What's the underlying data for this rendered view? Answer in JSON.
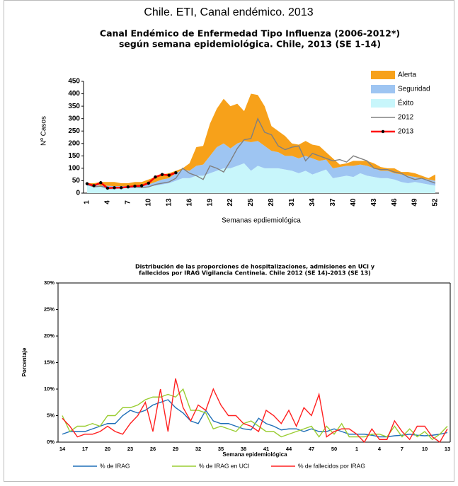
{
  "page_title": "Chile. ETI, Canal endémico. 2013",
  "chart_data": [
    {
      "type": "area",
      "stacked": true,
      "title": [
        "Canal  Endémico de Enfermedad Tipo Influenza (2006-2012*)",
        "según semana epidemiológica. Chile,  2013  (SE 1-14)"
      ],
      "xlabel": "Semanas epdiemiológica",
      "ylabel": "Nº Casos",
      "categories": [
        1,
        null,
        null,
        4,
        null,
        null,
        7,
        null,
        null,
        10,
        null,
        null,
        13,
        null,
        null,
        16,
        null,
        null,
        19,
        null,
        null,
        22,
        null,
        null,
        25,
        null,
        null,
        28,
        null,
        null,
        31,
        null,
        null,
        34,
        null,
        null,
        37,
        null,
        null,
        40,
        null,
        null,
        43,
        null,
        null,
        46,
        null,
        null,
        49,
        null,
        null,
        52
      ],
      "ylim": [
        0,
        450
      ],
      "yticks": [
        0,
        50,
        100,
        150,
        200,
        250,
        300,
        350,
        400,
        450
      ],
      "grid": false,
      "legend": "right",
      "series": [
        {
          "name": "Alerta",
          "type": "area",
          "color": "#f7a11a",
          "values": [
            5,
            7,
            15,
            15,
            17,
            12,
            12,
            15,
            13,
            20,
            20,
            20,
            20,
            10,
            5,
            30,
            75,
            75,
            130,
            155,
            180,
            170,
            160,
            120,
            195,
            185,
            160,
            100,
            85,
            80,
            50,
            55,
            60,
            55,
            60,
            30,
            40,
            10,
            10,
            20,
            15,
            20,
            20,
            15,
            10,
            20,
            10,
            15,
            15,
            10,
            5,
            25
          ]
        },
        {
          "name": "Seguridad",
          "type": "area",
          "color": "#9ec5f2",
          "values": [
            5,
            8,
            5,
            15,
            13,
            8,
            8,
            10,
            7,
            10,
            15,
            20,
            20,
            30,
            35,
            30,
            40,
            45,
            70,
            95,
            100,
            80,
            90,
            90,
            115,
            100,
            90,
            70,
            65,
            55,
            60,
            60,
            60,
            65,
            45,
            40,
            40,
            40,
            40,
            45,
            35,
            40,
            35,
            30,
            30,
            25,
            30,
            30,
            20,
            20,
            20,
            20
          ]
        },
        {
          "name": "Éxito",
          "type": "area",
          "color": "#c8f6fb",
          "values": [
            30,
            25,
            25,
            15,
            15,
            20,
            20,
            20,
            25,
            25,
            30,
            35,
            40,
            50,
            60,
            60,
            70,
            70,
            80,
            90,
            100,
            100,
            110,
            120,
            90,
            110,
            100,
            100,
            100,
            95,
            90,
            80,
            90,
            75,
            85,
            95,
            60,
            65,
            70,
            65,
            80,
            70,
            65,
            60,
            60,
            55,
            45,
            40,
            45,
            40,
            35,
            30
          ]
        },
        {
          "name": "2012",
          "type": "line",
          "color": "#808080",
          "values": [
            35,
            25,
            28,
            22,
            20,
            22,
            25,
            25,
            22,
            25,
            35,
            40,
            45,
            60,
            100,
            80,
            70,
            55,
            110,
            100,
            85,
            130,
            180,
            215,
            220,
            300,
            245,
            235,
            190,
            175,
            185,
            190,
            130,
            160,
            150,
            140,
            130,
            135,
            125,
            150,
            140,
            130,
            100,
            95,
            95,
            85,
            80,
            65,
            55,
            60,
            50,
            40
          ]
        },
        {
          "name": "2013",
          "type": "line",
          "color": "#ff0000",
          "markers": true,
          "values": [
            38,
            30,
            42,
            20,
            22,
            22,
            25,
            28,
            30,
            40,
            65,
            75,
            72,
            82,
            null,
            null,
            null,
            null,
            null,
            null,
            null,
            null,
            null,
            null,
            null,
            null,
            null,
            null,
            null,
            null,
            null,
            null,
            null,
            null,
            null,
            null,
            null,
            null,
            null,
            null,
            null,
            null,
            null,
            null,
            null,
            null,
            null,
            null,
            null,
            null,
            null,
            null
          ]
        }
      ]
    },
    {
      "type": "line",
      "title": [
        "Distribución de las proporciones de hospitalizaciones, admisiones en UCI y",
        "fallecidos por IRAG  Vigilancia  Centinela. Chile 2012 (SE 14)-2013 (SE 13)"
      ],
      "xlabel": "Semana epidemiológica",
      "ylabel": "Porcentaje",
      "categories": [
        14,
        null,
        null,
        17,
        null,
        null,
        20,
        null,
        null,
        23,
        null,
        null,
        26,
        null,
        null,
        29,
        null,
        null,
        32,
        null,
        null,
        35,
        null,
        null,
        38,
        null,
        null,
        41,
        null,
        null,
        44,
        null,
        null,
        47,
        null,
        null,
        50,
        null,
        null,
        1,
        null,
        null,
        4,
        null,
        null,
        7,
        null,
        null,
        10,
        null,
        null,
        13
      ],
      "ylim": [
        0,
        30
      ],
      "yticks": [
        {
          "value": 0,
          "label": "0%"
        },
        {
          "value": 5,
          "label": "5%"
        },
        {
          "value": 10,
          "label": "10%"
        },
        {
          "value": 15,
          "label": "15%"
        },
        {
          "value": 20,
          "label": "20%"
        },
        {
          "value": 25,
          "label": "25%"
        },
        {
          "value": 30,
          "label": "30%"
        }
      ],
      "grid": false,
      "legend": "bottom",
      "series": [
        {
          "name": "% de IRAG",
          "color": "#1f6fb8",
          "values": [
            1.5,
            2,
            2,
            2,
            2.5,
            3,
            3.5,
            3.5,
            5,
            6,
            5.5,
            6,
            7,
            7.5,
            8,
            6.5,
            5.5,
            4,
            3.5,
            6,
            4,
            3.5,
            3.5,
            3,
            2.5,
            2.3,
            4.5,
            3.5,
            3,
            2.3,
            2.5,
            2.5,
            2,
            2.5,
            2,
            2,
            2.5,
            2,
            1.5,
            1.5,
            1.5,
            1.3,
            1,
            1,
            1.2,
            1.3,
            1.5,
            1.3,
            1.2,
            1.3,
            1.5,
            1.8
          ]
        },
        {
          "name": "% de IRAG en UCI",
          "color": "#9acd32",
          "values": [
            5,
            2,
            3,
            3,
            3.5,
            3,
            5,
            5,
            6.5,
            6.5,
            7,
            8,
            8.5,
            8.5,
            9,
            8.5,
            10,
            6,
            6,
            5.5,
            2.5,
            3,
            2.5,
            2,
            3.5,
            4,
            3,
            2,
            2,
            1,
            1.5,
            2,
            2.5,
            3,
            1,
            3,
            1.5,
            3.5,
            1,
            1,
            1,
            1.5,
            1.5,
            1,
            3,
            1,
            2.5,
            1,
            2,
            0.5,
            1.5,
            3
          ]
        },
        {
          "name": "% de fallecidos por IRAG",
          "color": "#ff2020",
          "values": [
            4.5,
            3,
            1,
            1.5,
            1.5,
            2,
            3,
            2,
            1.5,
            3.5,
            5,
            7.5,
            2,
            10,
            2,
            12,
            6.5,
            4,
            7,
            6,
            10,
            7,
            5,
            5,
            3.5,
            3,
            2,
            6,
            5,
            3.5,
            6,
            3,
            6.5,
            5,
            9,
            1,
            2,
            2.5,
            2.5,
            1.5,
            0,
            2.5,
            0.5,
            0.5,
            4,
            2,
            0.5,
            3,
            3,
            1,
            0,
            2.5
          ]
        }
      ]
    }
  ]
}
